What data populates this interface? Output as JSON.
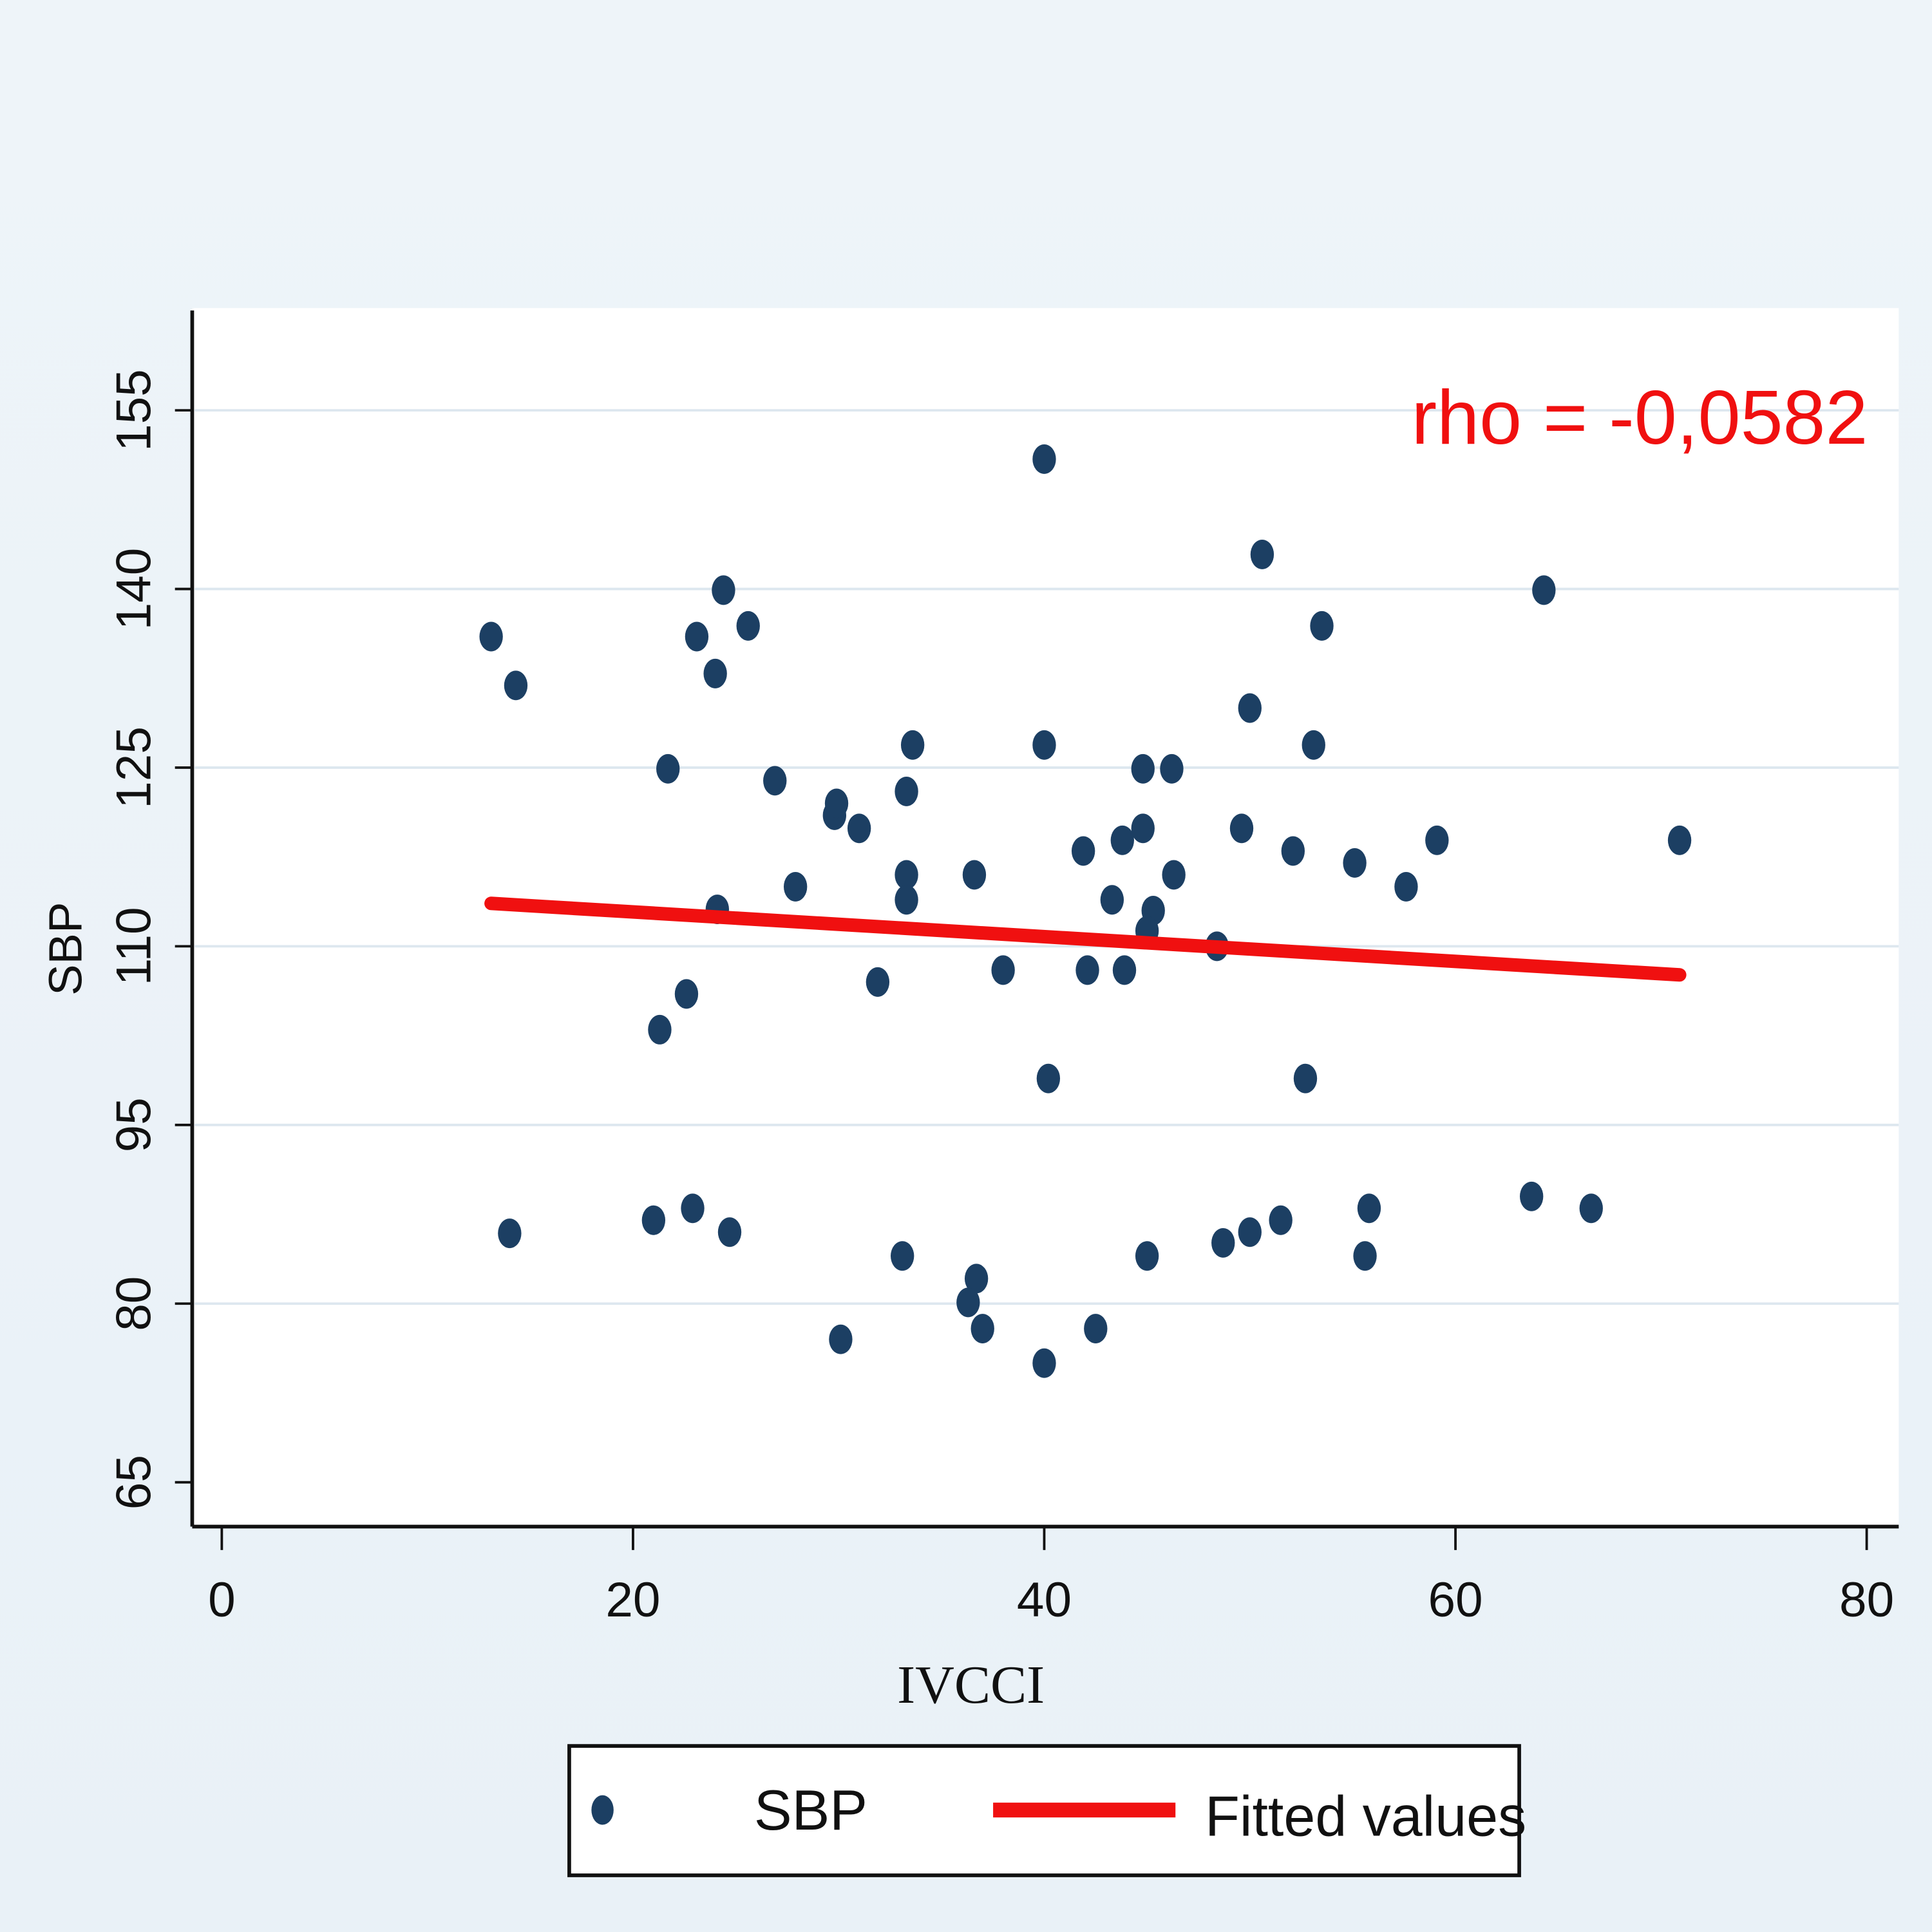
{
  "chart_data": {
    "type": "scatter",
    "title": "",
    "xlabel": "IVCCI",
    "ylabel": "SBP",
    "xlim": [
      0,
      80
    ],
    "ylim": [
      65,
      155
    ],
    "xticks": [
      0,
      20,
      40,
      60,
      80
    ],
    "yticks": [
      65,
      80,
      95,
      110,
      125,
      140,
      155
    ],
    "grid": true,
    "annotation": "rho = -0,0582",
    "colors": {
      "points": "#1c3f63",
      "fit": "#f01010",
      "annotation": "#f01010"
    },
    "legend": {
      "placement": "bottom",
      "entries": [
        "SBP",
        "Fitted values"
      ]
    },
    "series": [
      {
        "name": "SBP",
        "type": "scatter",
        "points": [
          [
            13.1,
            136.0
          ],
          [
            14.3,
            131.9
          ],
          [
            24.4,
            139.9
          ],
          [
            25.6,
            136.9
          ],
          [
            23.1,
            136.0
          ],
          [
            24.0,
            132.9
          ],
          [
            21.7,
            124.9
          ],
          [
            26.9,
            123.9
          ],
          [
            29.8,
            121.0
          ],
          [
            29.9,
            122.0
          ],
          [
            31.0,
            119.9
          ],
          [
            27.9,
            115.0
          ],
          [
            33.3,
            123.0
          ],
          [
            33.6,
            126.9
          ],
          [
            33.3,
            116.0
          ],
          [
            33.3,
            113.9
          ],
          [
            24.1,
            113.1
          ],
          [
            36.6,
            116.0
          ],
          [
            31.9,
            107.0
          ],
          [
            22.6,
            106.0
          ],
          [
            21.3,
            103.0
          ],
          [
            38.0,
            108.0
          ],
          [
            40.0,
            150.9
          ],
          [
            40.0,
            126.9
          ],
          [
            40.2,
            98.9
          ],
          [
            41.9,
            118.0
          ],
          [
            42.1,
            108.0
          ],
          [
            43.9,
            108.0
          ],
          [
            43.3,
            113.9
          ],
          [
            43.8,
            118.9
          ],
          [
            44.8,
            119.9
          ],
          [
            44.8,
            124.9
          ],
          [
            46.2,
            124.9
          ],
          [
            46.3,
            116.0
          ],
          [
            45.3,
            113.0
          ],
          [
            45.0,
            111.3
          ],
          [
            48.4,
            110.0
          ],
          [
            50.0,
            130.0
          ],
          [
            50.6,
            142.9
          ],
          [
            49.6,
            119.9
          ],
          [
            52.1,
            118.0
          ],
          [
            53.1,
            126.9
          ],
          [
            53.5,
            136.9
          ],
          [
            55.1,
            117.0
          ],
          [
            52.7,
            98.9
          ],
          [
            57.6,
            115.0
          ],
          [
            59.1,
            118.9
          ],
          [
            64.3,
            139.9
          ],
          [
            70.9,
            118.9
          ],
          [
            14.0,
            85.9
          ],
          [
            21.0,
            87.0
          ],
          [
            22.9,
            88.0
          ],
          [
            24.7,
            86.0
          ],
          [
            33.1,
            84.0
          ],
          [
            36.7,
            82.1
          ],
          [
            36.3,
            80.1
          ],
          [
            37.0,
            77.9
          ],
          [
            30.1,
            77.0
          ],
          [
            40.0,
            75.0
          ],
          [
            42.5,
            77.9
          ],
          [
            45.0,
            84.0
          ],
          [
            48.7,
            85.1
          ],
          [
            50.0,
            86.0
          ],
          [
            51.5,
            87.0
          ],
          [
            55.6,
            84.0
          ],
          [
            55.8,
            88.0
          ],
          [
            63.7,
            89.0
          ],
          [
            66.6,
            88.0
          ]
        ]
      },
      {
        "name": "Fitted values",
        "type": "line",
        "points": [
          [
            13.1,
            113.6
          ],
          [
            70.9,
            107.6
          ]
        ]
      }
    ]
  }
}
